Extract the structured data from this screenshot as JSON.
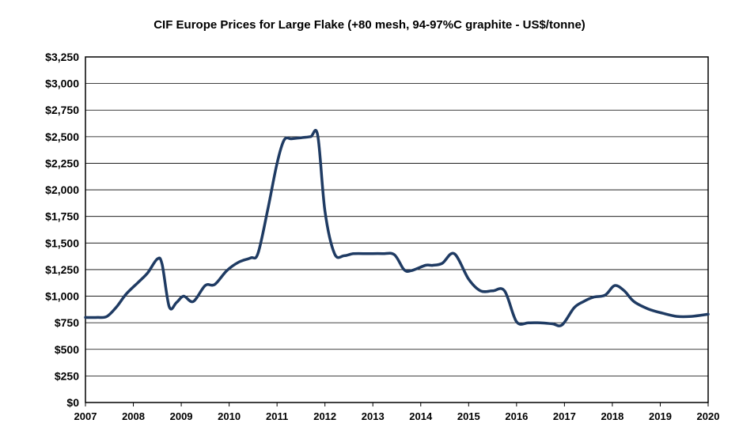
{
  "chart_data": {
    "type": "line",
    "title": "CIF Europe Prices for Large Flake (+80 mesh, 94-97%C  graphite - US$/tonne)",
    "xlabel": "",
    "ylabel": "",
    "xlim": [
      2007,
      2020
    ],
    "ylim": [
      0,
      3250
    ],
    "grid": true,
    "legend": "none",
    "x_ticks": [
      "2007",
      "2008",
      "2009",
      "2010",
      "2011",
      "2012",
      "2013",
      "2014",
      "2015",
      "2016",
      "2017",
      "2018",
      "2019",
      "2020"
    ],
    "y_ticks": [
      "$0",
      "$250",
      "$500",
      "$750",
      "$1,000",
      "$1,250",
      "$1,500",
      "$1,750",
      "$2,000",
      "$2,250",
      "$2,500",
      "$2,750",
      "$3,000",
      "$3,250"
    ],
    "line_color": "#1f3b63",
    "series": [
      {
        "name": "",
        "x": [
          2007.0,
          2007.25,
          2007.45,
          2007.65,
          2007.85,
          2008.1,
          2008.3,
          2008.5,
          2008.6,
          2008.75,
          2008.9,
          2009.05,
          2009.25,
          2009.5,
          2009.7,
          2009.95,
          2010.2,
          2010.45,
          2010.6,
          2010.8,
          2011.0,
          2011.15,
          2011.3,
          2011.5,
          2011.7,
          2011.85,
          2012.0,
          2012.2,
          2012.4,
          2012.6,
          2012.9,
          2013.2,
          2013.45,
          2013.65,
          2013.8,
          2014.1,
          2014.25,
          2014.45,
          2014.7,
          2015.0,
          2015.25,
          2015.5,
          2015.75,
          2016.0,
          2016.25,
          2016.5,
          2016.75,
          2016.95,
          2017.2,
          2017.4,
          2017.6,
          2017.85,
          2018.05,
          2018.25,
          2018.45,
          2018.75,
          2019.05,
          2019.35,
          2019.65,
          2020.0
        ],
        "values": [
          800,
          800,
          810,
          900,
          1020,
          1130,
          1220,
          1350,
          1300,
          900,
          940,
          1000,
          950,
          1100,
          1110,
          1240,
          1320,
          1360,
          1400,
          1800,
          2250,
          2470,
          2480,
          2490,
          2500,
          2510,
          1800,
          1400,
          1380,
          1400,
          1400,
          1400,
          1390,
          1250,
          1240,
          1290,
          1290,
          1310,
          1400,
          1160,
          1050,
          1050,
          1050,
          760,
          750,
          750,
          740,
          730,
          890,
          950,
          990,
          1010,
          1100,
          1050,
          950,
          880,
          840,
          810,
          810,
          830
        ]
      }
    ]
  }
}
